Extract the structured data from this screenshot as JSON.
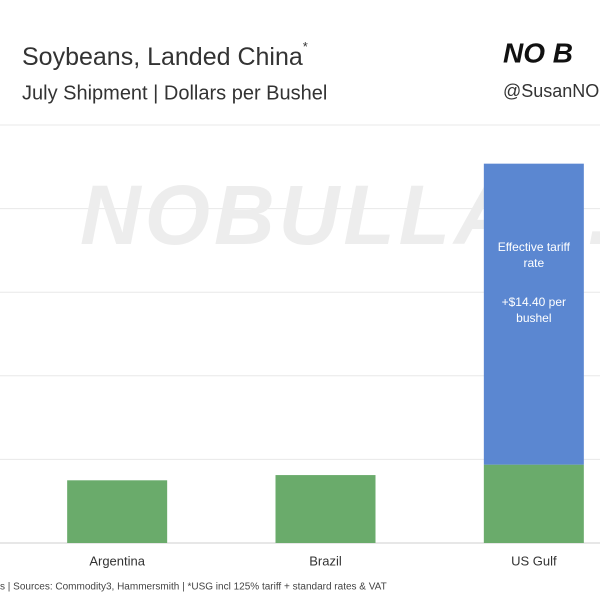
{
  "chart_data": {
    "type": "stacked_bar",
    "title": "Soybeans, Landed China",
    "title_mark": "*",
    "subtitle": "July Shipment | Dollars per Bushel",
    "brand": "NO B",
    "handle": "@SusanNOB",
    "watermark": "NOBULLAG.COM",
    "footer": "s | Sources: Commodity3, Hammersmith | *USG incl 125% tariff + standard rates & VAT",
    "categories": [
      "Argentina",
      "Brazil",
      "US Gulf"
    ],
    "series": [
      {
        "color": "#6aab6b",
        "values": [
          3,
          3.25,
          3.75
        ]
      },
      {
        "color": "#5b87d1",
        "values": [
          null,
          null,
          14.4
        ],
        "value_labels": [
          null,
          null,
          "+$14.40 per bushel"
        ]
      }
    ],
    "annotation": "Effective tariff rate",
    "ylim": [
      0,
      20
    ],
    "yticks": [
      0,
      4,
      8,
      12,
      16,
      20
    ],
    "grid": true
  }
}
